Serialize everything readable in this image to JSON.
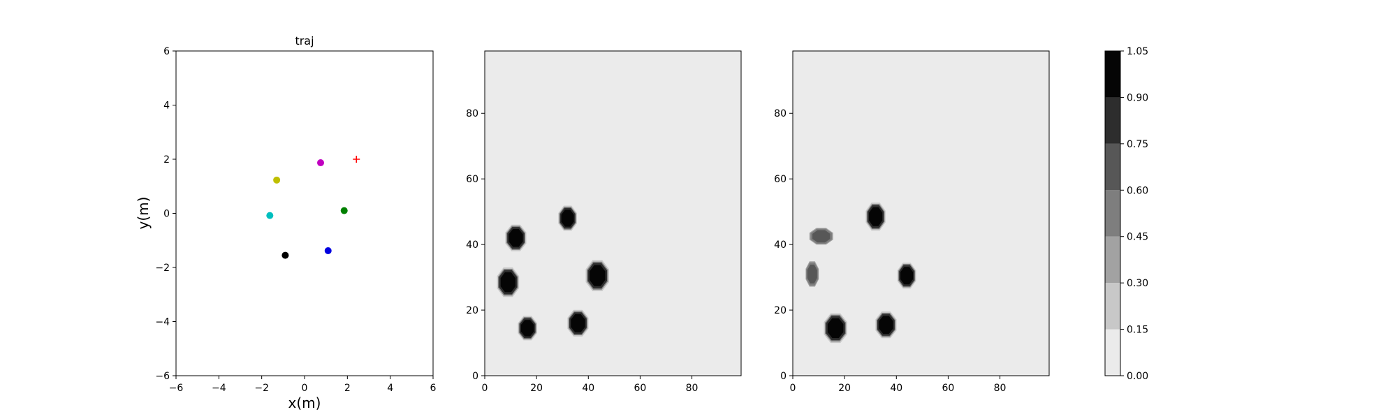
{
  "chart_data": [
    {
      "type": "scatter",
      "title": "traj",
      "xlabel": "x(m)",
      "ylabel": "y(m)",
      "xlim": [
        -6,
        6
      ],
      "ylim": [
        -6,
        6
      ],
      "xticks": [
        "−6",
        "−4",
        "−2",
        "0",
        "2",
        "4",
        "6"
      ],
      "yticks": [
        "−6",
        "−4",
        "−2",
        "0",
        "2",
        "4",
        "6"
      ],
      "grid": false,
      "points": [
        {
          "x": 0.75,
          "y": 1.87,
          "color": "#c000c0"
        },
        {
          "x": -1.3,
          "y": 1.23,
          "color": "#bfbf00"
        },
        {
          "x": -1.62,
          "y": -0.08,
          "color": "#00bfbf"
        },
        {
          "x": 1.85,
          "y": 0.1,
          "color": "#008000"
        },
        {
          "x": 1.1,
          "y": -1.38,
          "color": "#0000e0"
        },
        {
          "x": -0.9,
          "y": -1.55,
          "color": "#000000"
        }
      ],
      "goal_marker": {
        "x": 2.42,
        "y": 2.0,
        "color": "#ff0000",
        "symbol": "+"
      }
    },
    {
      "type": "heatmap",
      "xlim": [
        0,
        99
      ],
      "ylim": [
        0,
        99
      ],
      "xticks": [
        "0",
        "20",
        "40",
        "60",
        "80"
      ],
      "yticks": [
        "0",
        "20",
        "40",
        "60",
        "80"
      ],
      "background_value": 0.05,
      "blobs": [
        {
          "x": 32,
          "y": 48,
          "rx": 3.2,
          "ry": 3.4,
          "value": 1.0
        },
        {
          "x": 12,
          "y": 42,
          "rx": 3.6,
          "ry": 3.6,
          "value": 1.0
        },
        {
          "x": 9,
          "y": 28.5,
          "rx": 3.8,
          "ry": 4.0,
          "value": 1.0
        },
        {
          "x": 43.5,
          "y": 30.5,
          "rx": 4.0,
          "ry": 4.2,
          "value": 1.0
        },
        {
          "x": 16.5,
          "y": 14.5,
          "rx": 3.3,
          "ry": 3.3,
          "value": 1.0
        },
        {
          "x": 36,
          "y": 16,
          "rx": 3.6,
          "ry": 3.6,
          "value": 1.0
        }
      ]
    },
    {
      "type": "heatmap",
      "xlim": [
        0,
        99
      ],
      "ylim": [
        0,
        99
      ],
      "xticks": [
        "0",
        "20",
        "40",
        "60",
        "80"
      ],
      "yticks": [
        "0",
        "20",
        "40",
        "60",
        "80"
      ],
      "background_value": 0.05,
      "blobs": [
        {
          "x": 32,
          "y": 48.5,
          "rx": 3.4,
          "ry": 3.8,
          "value": 1.0
        },
        {
          "x": 11,
          "y": 42.5,
          "rx": 4.5,
          "ry": 2.5,
          "value": 0.7
        },
        {
          "x": 7.5,
          "y": 31,
          "rx": 2.5,
          "ry": 3.8,
          "value": 0.6
        },
        {
          "x": 44,
          "y": 30.5,
          "rx": 3.2,
          "ry": 3.5,
          "value": 1.0
        },
        {
          "x": 16.5,
          "y": 14.5,
          "rx": 4.0,
          "ry": 4.0,
          "value": 1.0
        },
        {
          "x": 36,
          "y": 15.5,
          "rx": 3.6,
          "ry": 3.6,
          "value": 1.0
        }
      ]
    }
  ],
  "colorbar": {
    "ticks": [
      "0.00",
      "0.15",
      "0.30",
      "0.45",
      "0.60",
      "0.75",
      "0.90",
      "1.05"
    ],
    "levels": [
      0.0,
      0.15,
      0.3,
      0.45,
      0.6,
      0.75,
      0.9,
      1.05
    ],
    "colors": [
      "#ebebeb",
      "#c8c8c8",
      "#a2a2a2",
      "#7e7e7e",
      "#575757",
      "#2d2d2d",
      "#050505"
    ]
  }
}
